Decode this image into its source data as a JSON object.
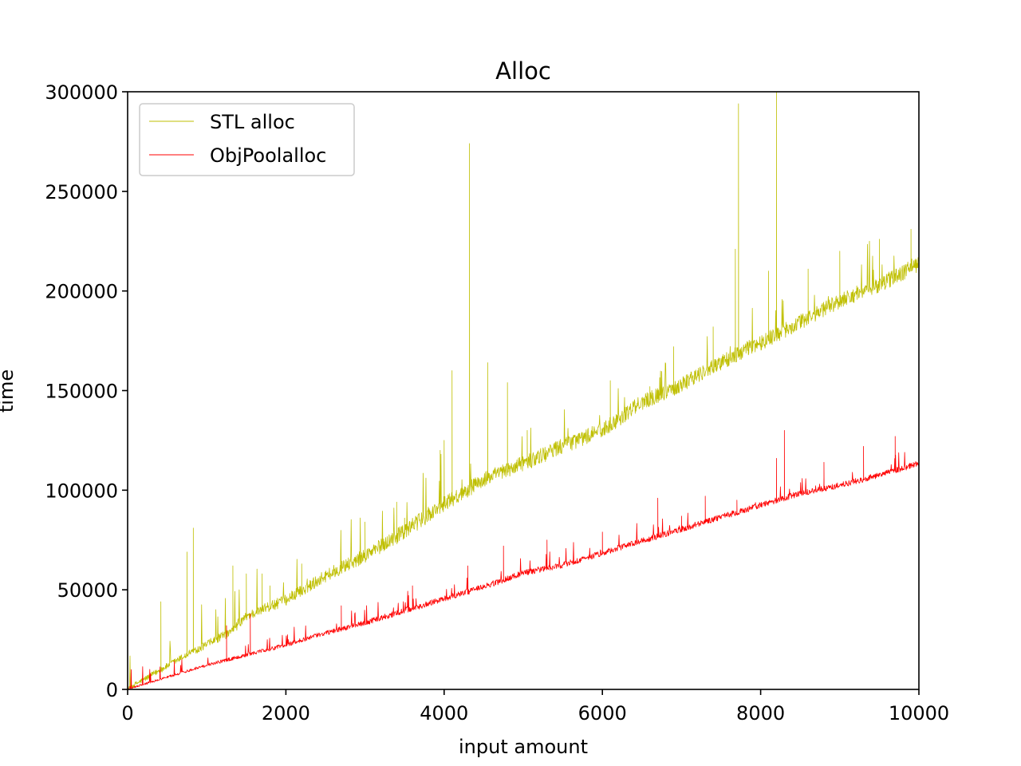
{
  "chart_data": {
    "type": "line",
    "title": "Alloc",
    "xlabel": "input amount",
    "ylabel": "time",
    "xlim": [
      0,
      10000
    ],
    "ylim": [
      0,
      300000
    ],
    "xticks": [
      0,
      2000,
      4000,
      6000,
      8000,
      10000
    ],
    "yticks": [
      0,
      50000,
      100000,
      150000,
      200000,
      250000,
      300000
    ],
    "xtick_labels": [
      "0",
      "2000",
      "4000",
      "6000",
      "8000",
      "10000"
    ],
    "ytick_labels": [
      "0",
      "50000",
      "100000",
      "150000",
      "200000",
      "250000",
      "300000"
    ],
    "grid": false,
    "legend": "top-left",
    "series": [
      {
        "name": "STL alloc",
        "color": "#bfbf00",
        "baseline": [
          [
            0,
            0
          ],
          [
            400,
            9000
          ],
          [
            800,
            18000
          ],
          [
            1300,
            28000
          ],
          [
            1500,
            36000
          ],
          [
            2000,
            44000
          ],
          [
            2500,
            56000
          ],
          [
            3000,
            66000
          ],
          [
            3500,
            78000
          ],
          [
            4000,
            92000
          ],
          [
            4500,
            104000
          ],
          [
            5000,
            112000
          ],
          [
            5500,
            121000
          ],
          [
            6000,
            129000
          ],
          [
            6500,
            143000
          ],
          [
            7000,
            152000
          ],
          [
            7500,
            163000
          ],
          [
            8000,
            173000
          ],
          [
            8500,
            183000
          ],
          [
            9000,
            194000
          ],
          [
            9500,
            202000
          ],
          [
            10000,
            212000
          ]
        ],
        "spikes": [
          [
            420,
            44000
          ],
          [
            750,
            69000
          ],
          [
            830,
            81000
          ],
          [
            1330,
            62000
          ],
          [
            1500,
            58000
          ],
          [
            1700,
            58000
          ],
          [
            1800,
            52000
          ],
          [
            2200,
            63000
          ],
          [
            3000,
            84000
          ],
          [
            3400,
            94000
          ],
          [
            3500,
            86000
          ],
          [
            3950,
            120000
          ],
          [
            4000,
            125000
          ],
          [
            4100,
            160000
          ],
          [
            4320,
            274000
          ],
          [
            4550,
            164000
          ],
          [
            4800,
            154000
          ],
          [
            5050,
            130000
          ],
          [
            6100,
            155000
          ],
          [
            6600,
            152000
          ],
          [
            6900,
            172000
          ],
          [
            7400,
            182000
          ],
          [
            7680,
            221000
          ],
          [
            7720,
            294000
          ],
          [
            8100,
            210000
          ],
          [
            8200,
            300000
          ],
          [
            8600,
            211000
          ],
          [
            9000,
            220000
          ],
          [
            9500,
            226000
          ],
          [
            9900,
            231000
          ]
        ],
        "noise_amplitude": 8000
      },
      {
        "name": "ObjPoolalloc",
        "color": "#ff0000",
        "baseline": [
          [
            0,
            0
          ],
          [
            500,
            6000
          ],
          [
            1000,
            12000
          ],
          [
            1500,
            17000
          ],
          [
            2000,
            22000
          ],
          [
            2500,
            28000
          ],
          [
            3000,
            33000
          ],
          [
            3500,
            39000
          ],
          [
            4000,
            45000
          ],
          [
            4500,
            51000
          ],
          [
            5000,
            58000
          ],
          [
            5500,
            62000
          ],
          [
            6000,
            68000
          ],
          [
            6500,
            74000
          ],
          [
            7000,
            80000
          ],
          [
            7500,
            86000
          ],
          [
            8000,
            92000
          ],
          [
            8500,
            98000
          ],
          [
            9000,
            102000
          ],
          [
            9500,
            107000
          ],
          [
            10000,
            113000
          ]
        ],
        "spikes": [
          [
            1250,
            32000
          ],
          [
            1550,
            38000
          ],
          [
            2700,
            42000
          ],
          [
            3600,
            52000
          ],
          [
            4300,
            62000
          ],
          [
            4750,
            72000
          ],
          [
            5300,
            75000
          ],
          [
            6000,
            79000
          ],
          [
            6700,
            96000
          ],
          [
            7000,
            87000
          ],
          [
            7300,
            97000
          ],
          [
            7700,
            95000
          ],
          [
            8200,
            116000
          ],
          [
            8300,
            130000
          ],
          [
            8800,
            114000
          ],
          [
            9300,
            122000
          ],
          [
            9700,
            127000
          ],
          [
            10000,
            130000
          ]
        ],
        "noise_amplitude": 3000
      }
    ]
  }
}
